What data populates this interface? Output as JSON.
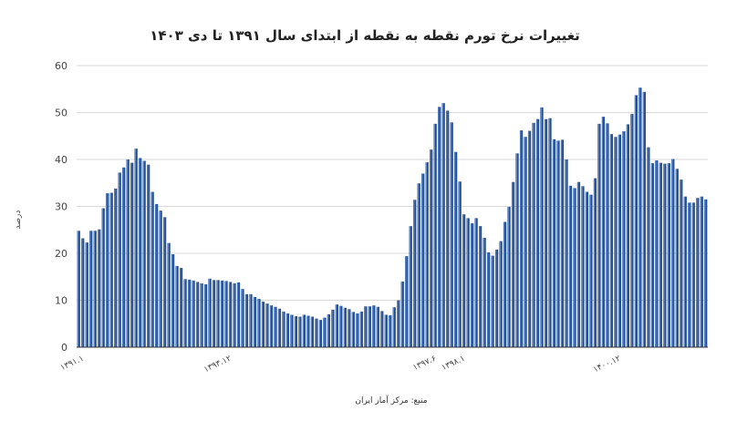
{
  "chart_data": {
    "type": "bar",
    "title": "تغییرات نرخ تورم نقطه به نقطه از ابتدای سال ۱۳۹۱ تا دی ۱۴۰۳",
    "ylabel": "درصد",
    "source": "منبع: مرکز آمار ایران",
    "ylim": [
      0,
      60
    ],
    "yticks": [
      0,
      10,
      20,
      30,
      40,
      50,
      60
    ],
    "grid": true,
    "bar_color": "#1f4e99",
    "bar_highlight": "#ffffff",
    "x_tick_labels": [
      {
        "index": 0,
        "label": "۱۳۹۱.۱"
      },
      {
        "index": 36,
        "label": "۱۳۹۳.۱۲"
      },
      {
        "index": 86,
        "label": "۱۳۹۷.۶"
      },
      {
        "index": 93,
        "label": "۱۳۹۸.۱"
      },
      {
        "index": 131,
        "label": "۱۴۰۰.۱۲"
      }
    ],
    "values": [
      24.8,
      23.2,
      22.3,
      24.8,
      24.8,
      25.1,
      29.6,
      32.8,
      32.9,
      33.8,
      37.2,
      38.3,
      40.0,
      39.3,
      42.3,
      40.3,
      39.7,
      38.9,
      33.1,
      30.5,
      29.1,
      27.7,
      22.2,
      19.8,
      17.3,
      16.9,
      14.5,
      14.4,
      14.2,
      13.9,
      13.6,
      13.4,
      14.6,
      14.3,
      14.3,
      14.2,
      14.1,
      13.9,
      13.6,
      13.8,
      12.4,
      11.3,
      11.3,
      10.7,
      10.3,
      9.7,
      9.3,
      8.9,
      8.6,
      8.2,
      7.6,
      7.2,
      6.9,
      6.6,
      6.5,
      6.9,
      6.7,
      6.5,
      6.1,
      5.8,
      6.3,
      7.0,
      8.0,
      9.1,
      8.8,
      8.4,
      8.1,
      7.5,
      7.2,
      7.6,
      8.7,
      8.7,
      8.9,
      8.6,
      7.7,
      6.9,
      6.8,
      8.5,
      10.0,
      14.0,
      19.4,
      25.8,
      31.4,
      34.9,
      37.0,
      39.4,
      42.1,
      47.6,
      51.2,
      52.0,
      50.4,
      47.9,
      41.6,
      35.3,
      28.3,
      27.5,
      26.4,
      27.5,
      25.8,
      23.3,
      20.2,
      19.5,
      20.8,
      22.6,
      26.7,
      29.9,
      35.2,
      41.3,
      46.2,
      44.8,
      46.1,
      47.8,
      48.6,
      51.1,
      48.6,
      48.8,
      44.3,
      44.0,
      44.2,
      40.0,
      34.4,
      33.9,
      35.2,
      34.3,
      33.1,
      32.5,
      36.0,
      47.6,
      49.1,
      47.7,
      45.4,
      44.8,
      45.3,
      46.0,
      47.5,
      49.7,
      53.7,
      55.3,
      54.4,
      42.6,
      39.2,
      39.8,
      39.3,
      39.1,
      39.2,
      40.1,
      38.0,
      35.7,
      32.1,
      30.8,
      30.8,
      31.8,
      32.1,
      31.5
    ]
  }
}
